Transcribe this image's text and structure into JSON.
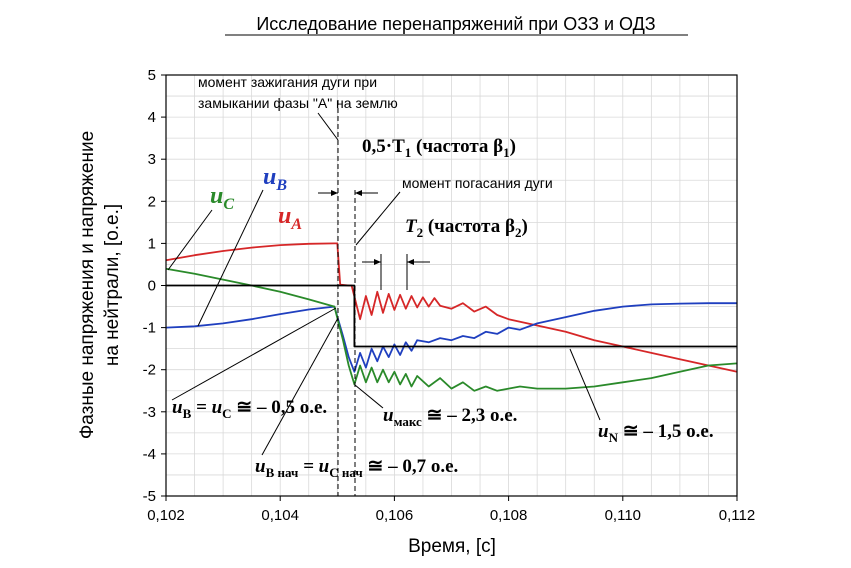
{
  "chart_data": {
    "type": "line",
    "title": "Исследование перенапряжений при ОЗЗ и ОДЗ",
    "xlabel": "Время, [с]",
    "ylabel_line1": "Фазные напряжения и напряжение",
    "ylabel_line2": "на нейтрали, [о.е.]",
    "xlim": [
      0.102,
      0.112
    ],
    "ylim": [
      -5,
      5
    ],
    "xticks": [
      "0,102",
      "0,104",
      "0,106",
      "0,108",
      "0,110",
      "0,112"
    ],
    "xtick_values": [
      0.102,
      0.104,
      0.106,
      0.108,
      0.11,
      0.112
    ],
    "yticks": [
      "5",
      "4",
      "3",
      "2",
      "1",
      "0",
      "-1",
      "-2",
      "-3",
      "-4",
      "-5"
    ],
    "ytick_values": [
      5,
      4,
      3,
      2,
      1,
      0,
      -1,
      -2,
      -3,
      -4,
      -5
    ],
    "grid": true,
    "series": [
      {
        "name": "uA",
        "color": "#d62728",
        "x": [
          0.102,
          0.1025,
          0.103,
          0.1035,
          0.104,
          0.1045,
          0.10495,
          0.105,
          0.10505,
          0.1052,
          0.10525,
          0.1054,
          0.1055,
          0.1056,
          0.1057,
          0.1058,
          0.1059,
          0.106,
          0.1061,
          0.1062,
          0.1063,
          0.1064,
          0.1065,
          0.1066,
          0.1067,
          0.1068,
          0.107,
          0.1072,
          0.1074,
          0.1076,
          0.1078,
          0.108,
          0.1085,
          0.109,
          0.1095,
          0.11,
          0.1105,
          0.111,
          0.1115,
          0.112
        ],
        "y": [
          0.6,
          0.72,
          0.82,
          0.9,
          0.96,
          0.99,
          1.0,
          1.0,
          0.02,
          0.0,
          0.0,
          -0.8,
          -0.25,
          -0.7,
          -0.15,
          -0.65,
          -0.2,
          -0.58,
          -0.22,
          -0.55,
          -0.25,
          -0.52,
          -0.28,
          -0.5,
          -0.3,
          -0.48,
          -0.55,
          -0.42,
          -0.62,
          -0.5,
          -0.7,
          -0.8,
          -0.95,
          -1.1,
          -1.3,
          -1.45,
          -1.6,
          -1.75,
          -1.9,
          -2.05
        ]
      },
      {
        "name": "uB",
        "color": "#1f3fbf",
        "x": [
          0.102,
          0.1025,
          0.103,
          0.1035,
          0.104,
          0.1045,
          0.10495,
          0.1051,
          0.1052,
          0.1053,
          0.1054,
          0.1055,
          0.1056,
          0.1057,
          0.1058,
          0.1059,
          0.106,
          0.1061,
          0.1062,
          0.1063,
          0.1064,
          0.1066,
          0.1068,
          0.107,
          0.1072,
          0.1074,
          0.1076,
          0.1078,
          0.108,
          0.1082,
          0.1085,
          0.109,
          0.1095,
          0.11,
          0.1105,
          0.111,
          0.1115,
          0.112
        ],
        "y": [
          -1.0,
          -0.97,
          -0.9,
          -0.8,
          -0.68,
          -0.57,
          -0.5,
          -1.2,
          -1.7,
          -2.05,
          -1.6,
          -1.95,
          -1.5,
          -1.8,
          -1.45,
          -1.7,
          -1.4,
          -1.65,
          -1.35,
          -1.55,
          -1.3,
          -1.35,
          -1.25,
          -1.3,
          -1.2,
          -1.25,
          -1.1,
          -1.15,
          -1.0,
          -1.05,
          -0.9,
          -0.75,
          -0.6,
          -0.5,
          -0.45,
          -0.43,
          -0.42,
          -0.42
        ]
      },
      {
        "name": "uC",
        "color": "#2a8a2a",
        "x": [
          0.102,
          0.1025,
          0.103,
          0.1035,
          0.104,
          0.1045,
          0.10495,
          0.1051,
          0.1052,
          0.1053,
          0.1054,
          0.1055,
          0.1056,
          0.1057,
          0.1058,
          0.1059,
          0.106,
          0.1061,
          0.1062,
          0.1063,
          0.1064,
          0.1066,
          0.1068,
          0.107,
          0.1072,
          0.1074,
          0.1076,
          0.1078,
          0.108,
          0.1082,
          0.1085,
          0.109,
          0.1095,
          0.11,
          0.1105,
          0.111,
          0.1115,
          0.112
        ],
        "y": [
          0.4,
          0.28,
          0.14,
          0.0,
          -0.15,
          -0.33,
          -0.5,
          -1.3,
          -1.9,
          -2.35,
          -1.9,
          -2.3,
          -1.95,
          -2.3,
          -2.0,
          -2.3,
          -2.05,
          -2.35,
          -2.1,
          -2.4,
          -2.15,
          -2.4,
          -2.2,
          -2.45,
          -2.3,
          -2.5,
          -2.4,
          -2.5,
          -2.45,
          -2.4,
          -2.45,
          -2.45,
          -2.4,
          -2.3,
          -2.2,
          -2.05,
          -1.9,
          -1.85
        ]
      },
      {
        "name": "uN",
        "color": "#000000",
        "x": [
          0.102,
          0.105,
          0.105,
          0.1053,
          0.1053,
          0.112
        ],
        "y": [
          0.0,
          0.0,
          0.0,
          0.0,
          -1.45,
          -1.45
        ]
      }
    ],
    "annotations": {
      "arc_ignition_line1": "момент зажигания дуги при",
      "arc_ignition_line2": "замыкании фазы \"А\" на землю",
      "arc_extinction": "момент погасания дуги",
      "half_T1": "0,5·T",
      "half_T1_sub": "1",
      "half_T1_rest": " (частота β",
      "half_T1_sub2": "1",
      "half_T1_close": ")",
      "T2": "T",
      "T2_sub": "2",
      "T2_rest": " (частота β",
      "T2_sub2": "2",
      "T2_close": ")",
      "label_uA": "u",
      "label_uA_sub": "A",
      "label_uB": "u",
      "label_uB_sub": "B",
      "label_uC": "u",
      "label_uC_sub": "C",
      "eq1_a": "u",
      "eq1_a_sub": "B",
      "eq1_b": " = u",
      "eq1_b_sub": "C",
      "eq1_rest": " ≅ – 0,5 о.е.",
      "eq2_a": "u",
      "eq2_a_sub": "B нач",
      "eq2_b": " = u",
      "eq2_b_sub": "C нач",
      "eq2_rest": " ≅ – 0,7 о.е.",
      "eq3_a": "u",
      "eq3_a_sub": "макс",
      "eq3_rest": " ≅ – 2,3 о.е.",
      "eq4_a": "u",
      "eq4_a_sub": "N",
      "eq4_rest": " ≅ – 1,5 о.е."
    }
  }
}
